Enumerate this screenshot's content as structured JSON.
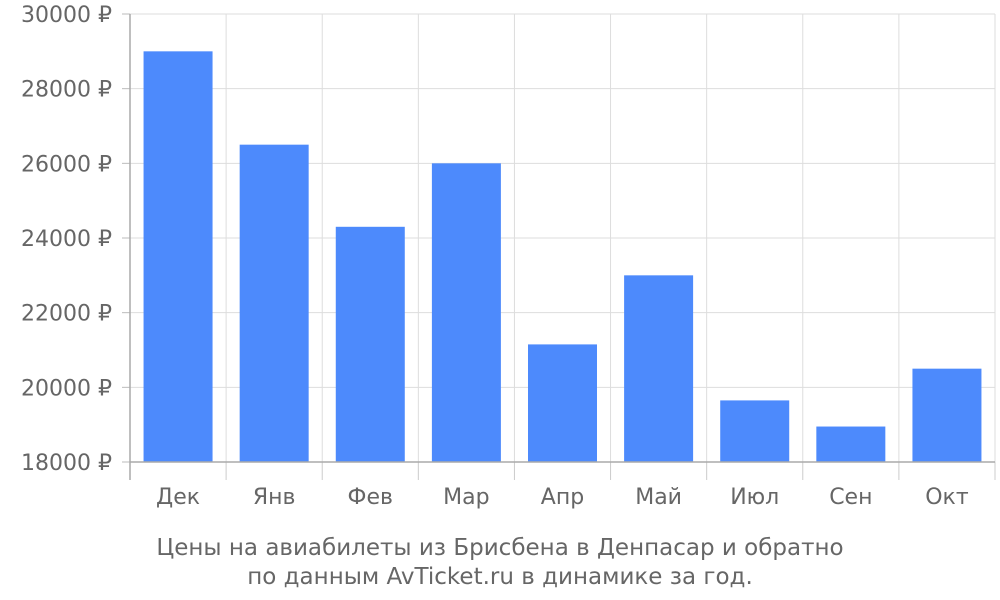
{
  "chart_data": {
    "type": "bar",
    "categories": [
      "Дек",
      "Янв",
      "Фев",
      "Мар",
      "Апр",
      "Май",
      "Июл",
      "Сен",
      "Окт"
    ],
    "values": [
      29000,
      26500,
      24300,
      26000,
      21150,
      23000,
      19650,
      18950,
      20500
    ],
    "ylim": [
      18000,
      30000
    ],
    "yticks": [
      "18000 ₽",
      "20000 ₽",
      "22000 ₽",
      "24000 ₽",
      "26000 ₽",
      "28000 ₽",
      "30000 ₽"
    ],
    "ytick_values": [
      18000,
      20000,
      22000,
      24000,
      26000,
      28000,
      30000
    ],
    "grid": true,
    "bar_color": "#4d8afc",
    "caption_lines": [
      "Цены на авиабилеты из Брисбена в Денпасар и обратно",
      "по данным AvTicket.ru в динамике за год."
    ]
  }
}
